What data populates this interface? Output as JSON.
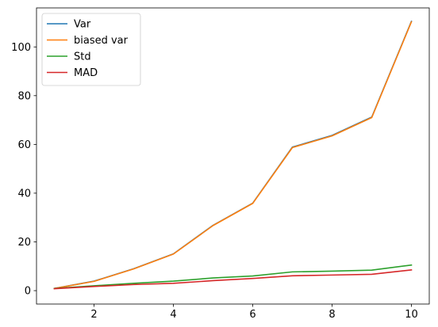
{
  "chart_data": {
    "type": "line",
    "title": "",
    "xlabel": "",
    "ylabel": "",
    "x": [
      1,
      2,
      3,
      4,
      5,
      6,
      7,
      8,
      9,
      10
    ],
    "xlim": [
      0.55,
      10.45
    ],
    "ylim": [
      -5.5,
      116
    ],
    "xticks": [
      2,
      4,
      6,
      8,
      10
    ],
    "yticks": [
      0,
      20,
      40,
      60,
      80,
      100
    ],
    "grid": false,
    "legend_position": "top-left",
    "series": [
      {
        "name": "Var",
        "color": "#1f77b4",
        "values": [
          0.9,
          3.9,
          9.0,
          15.1,
          26.8,
          35.9,
          58.9,
          63.7,
          71.2,
          110.5
        ]
      },
      {
        "name": "biased var",
        "color": "#ff7f0e",
        "values": [
          0.9,
          3.8,
          8.9,
          15.0,
          26.7,
          35.8,
          58.7,
          63.5,
          71.0,
          110.3
        ]
      },
      {
        "name": "Std",
        "color": "#2ca02c",
        "values": [
          0.9,
          2.0,
          3.0,
          3.9,
          5.2,
          6.0,
          7.7,
          8.0,
          8.4,
          10.5
        ]
      },
      {
        "name": "MAD",
        "color": "#d62728",
        "values": [
          0.8,
          1.7,
          2.5,
          3.0,
          4.1,
          5.0,
          6.1,
          6.4,
          6.7,
          8.5
        ]
      }
    ]
  }
}
